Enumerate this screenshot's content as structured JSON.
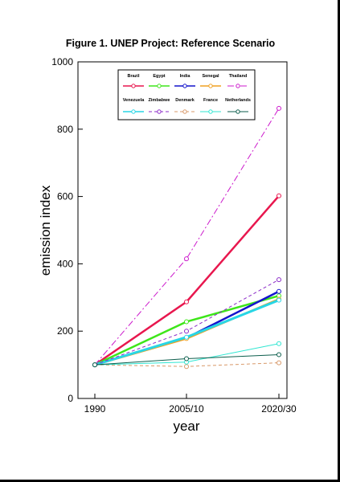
{
  "chart_data": {
    "type": "line",
    "title": "Figure 1. UNEP Project: Reference Scenario",
    "xlabel": "year",
    "ylabel": "emission index",
    "categories": [
      "1990",
      "2005/10",
      "2020/30"
    ],
    "ylim": [
      0,
      1000
    ],
    "yticks": [
      0,
      200,
      400,
      600,
      800,
      1000
    ],
    "grid": false,
    "legend_position": "top",
    "series": [
      {
        "name": "Brazil",
        "values": [
          100,
          287,
          602
        ],
        "color": "#e8174e",
        "style": "solid",
        "width": 2.5
      },
      {
        "name": "Egypt",
        "values": [
          100,
          228,
          305
        ],
        "color": "#3ee61a",
        "style": "solid",
        "width": 2.5
      },
      {
        "name": "India",
        "values": [
          100,
          180,
          318
        ],
        "color": "#1414cc",
        "style": "solid",
        "width": 2.5
      },
      {
        "name": "Senegal",
        "values": [
          100,
          178,
          295
        ],
        "color": "#f0a020",
        "style": "solid",
        "width": 2.5
      },
      {
        "name": "Thailand",
        "values": [
          100,
          415,
          862
        ],
        "color": "#cc1acc",
        "style": "dashdot",
        "width": 1
      },
      {
        "name": "Venezuela",
        "values": [
          100,
          182,
          292
        ],
        "color": "#28d6e6",
        "style": "solid",
        "width": 3
      },
      {
        "name": "Zimbabwe",
        "values": [
          100,
          200,
          353
        ],
        "color": "#8c2cc8",
        "style": "dashed",
        "width": 1
      },
      {
        "name": "Denmark",
        "values": [
          100,
          95,
          106
        ],
        "color": "#d89868",
        "style": "dashed",
        "width": 1
      },
      {
        "name": "France",
        "values": [
          100,
          108,
          163
        ],
        "color": "#30e6d2",
        "style": "solid",
        "width": 1
      },
      {
        "name": "Netherlands",
        "values": [
          100,
          118,
          130
        ],
        "color": "#0c5e4c",
        "style": "solid",
        "width": 1
      }
    ]
  }
}
